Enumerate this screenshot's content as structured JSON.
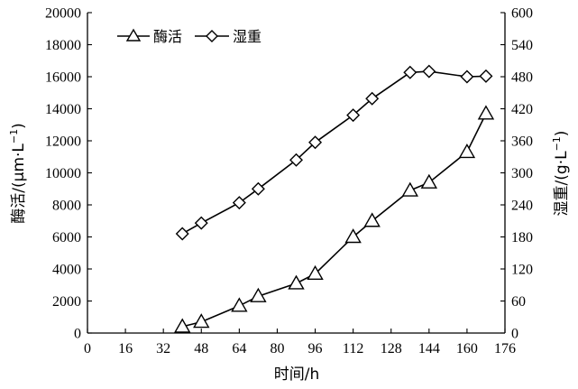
{
  "chart_data": {
    "type": "line",
    "xlabel": "时间/h",
    "ylabel_left": "酶活/(μm·L",
    "ylabel_left_sup": "−1",
    "ylabel_left_close": ")",
    "ylabel_right": "湿重/(g·L",
    "ylabel_right_sup": "−1",
    "ylabel_right_close": ")",
    "x_ticks": [
      0,
      16,
      32,
      48,
      64,
      80,
      96,
      112,
      128,
      144,
      160,
      176
    ],
    "xlim": [
      0,
      176
    ],
    "y_left_ticks": [
      0,
      2000,
      4000,
      6000,
      8000,
      10000,
      12000,
      14000,
      16000,
      18000,
      20000
    ],
    "ylim_left": [
      0,
      20000
    ],
    "y_right_ticks": [
      0,
      60,
      120,
      180,
      240,
      300,
      360,
      420,
      480,
      540,
      600
    ],
    "ylim_right": [
      0,
      600
    ],
    "grid": false,
    "legend_position": "top-left",
    "series": [
      {
        "name": "酶活",
        "axis": "left",
        "marker": "triangle",
        "x": [
          40,
          48,
          64,
          72,
          88,
          96,
          112,
          120,
          136,
          144,
          160,
          168
        ],
        "y": [
          400,
          700,
          1700,
          2300,
          3100,
          3700,
          6000,
          7000,
          8900,
          9400,
          11300,
          13700
        ]
      },
      {
        "name": "湿重",
        "axis": "right",
        "marker": "diamond",
        "x": [
          40,
          48,
          64,
          72,
          88,
          96,
          112,
          120,
          136,
          144,
          160,
          168
        ],
        "y": [
          186,
          206,
          244,
          270,
          324,
          357,
          408,
          439,
          488,
          490,
          480,
          481
        ]
      }
    ]
  }
}
